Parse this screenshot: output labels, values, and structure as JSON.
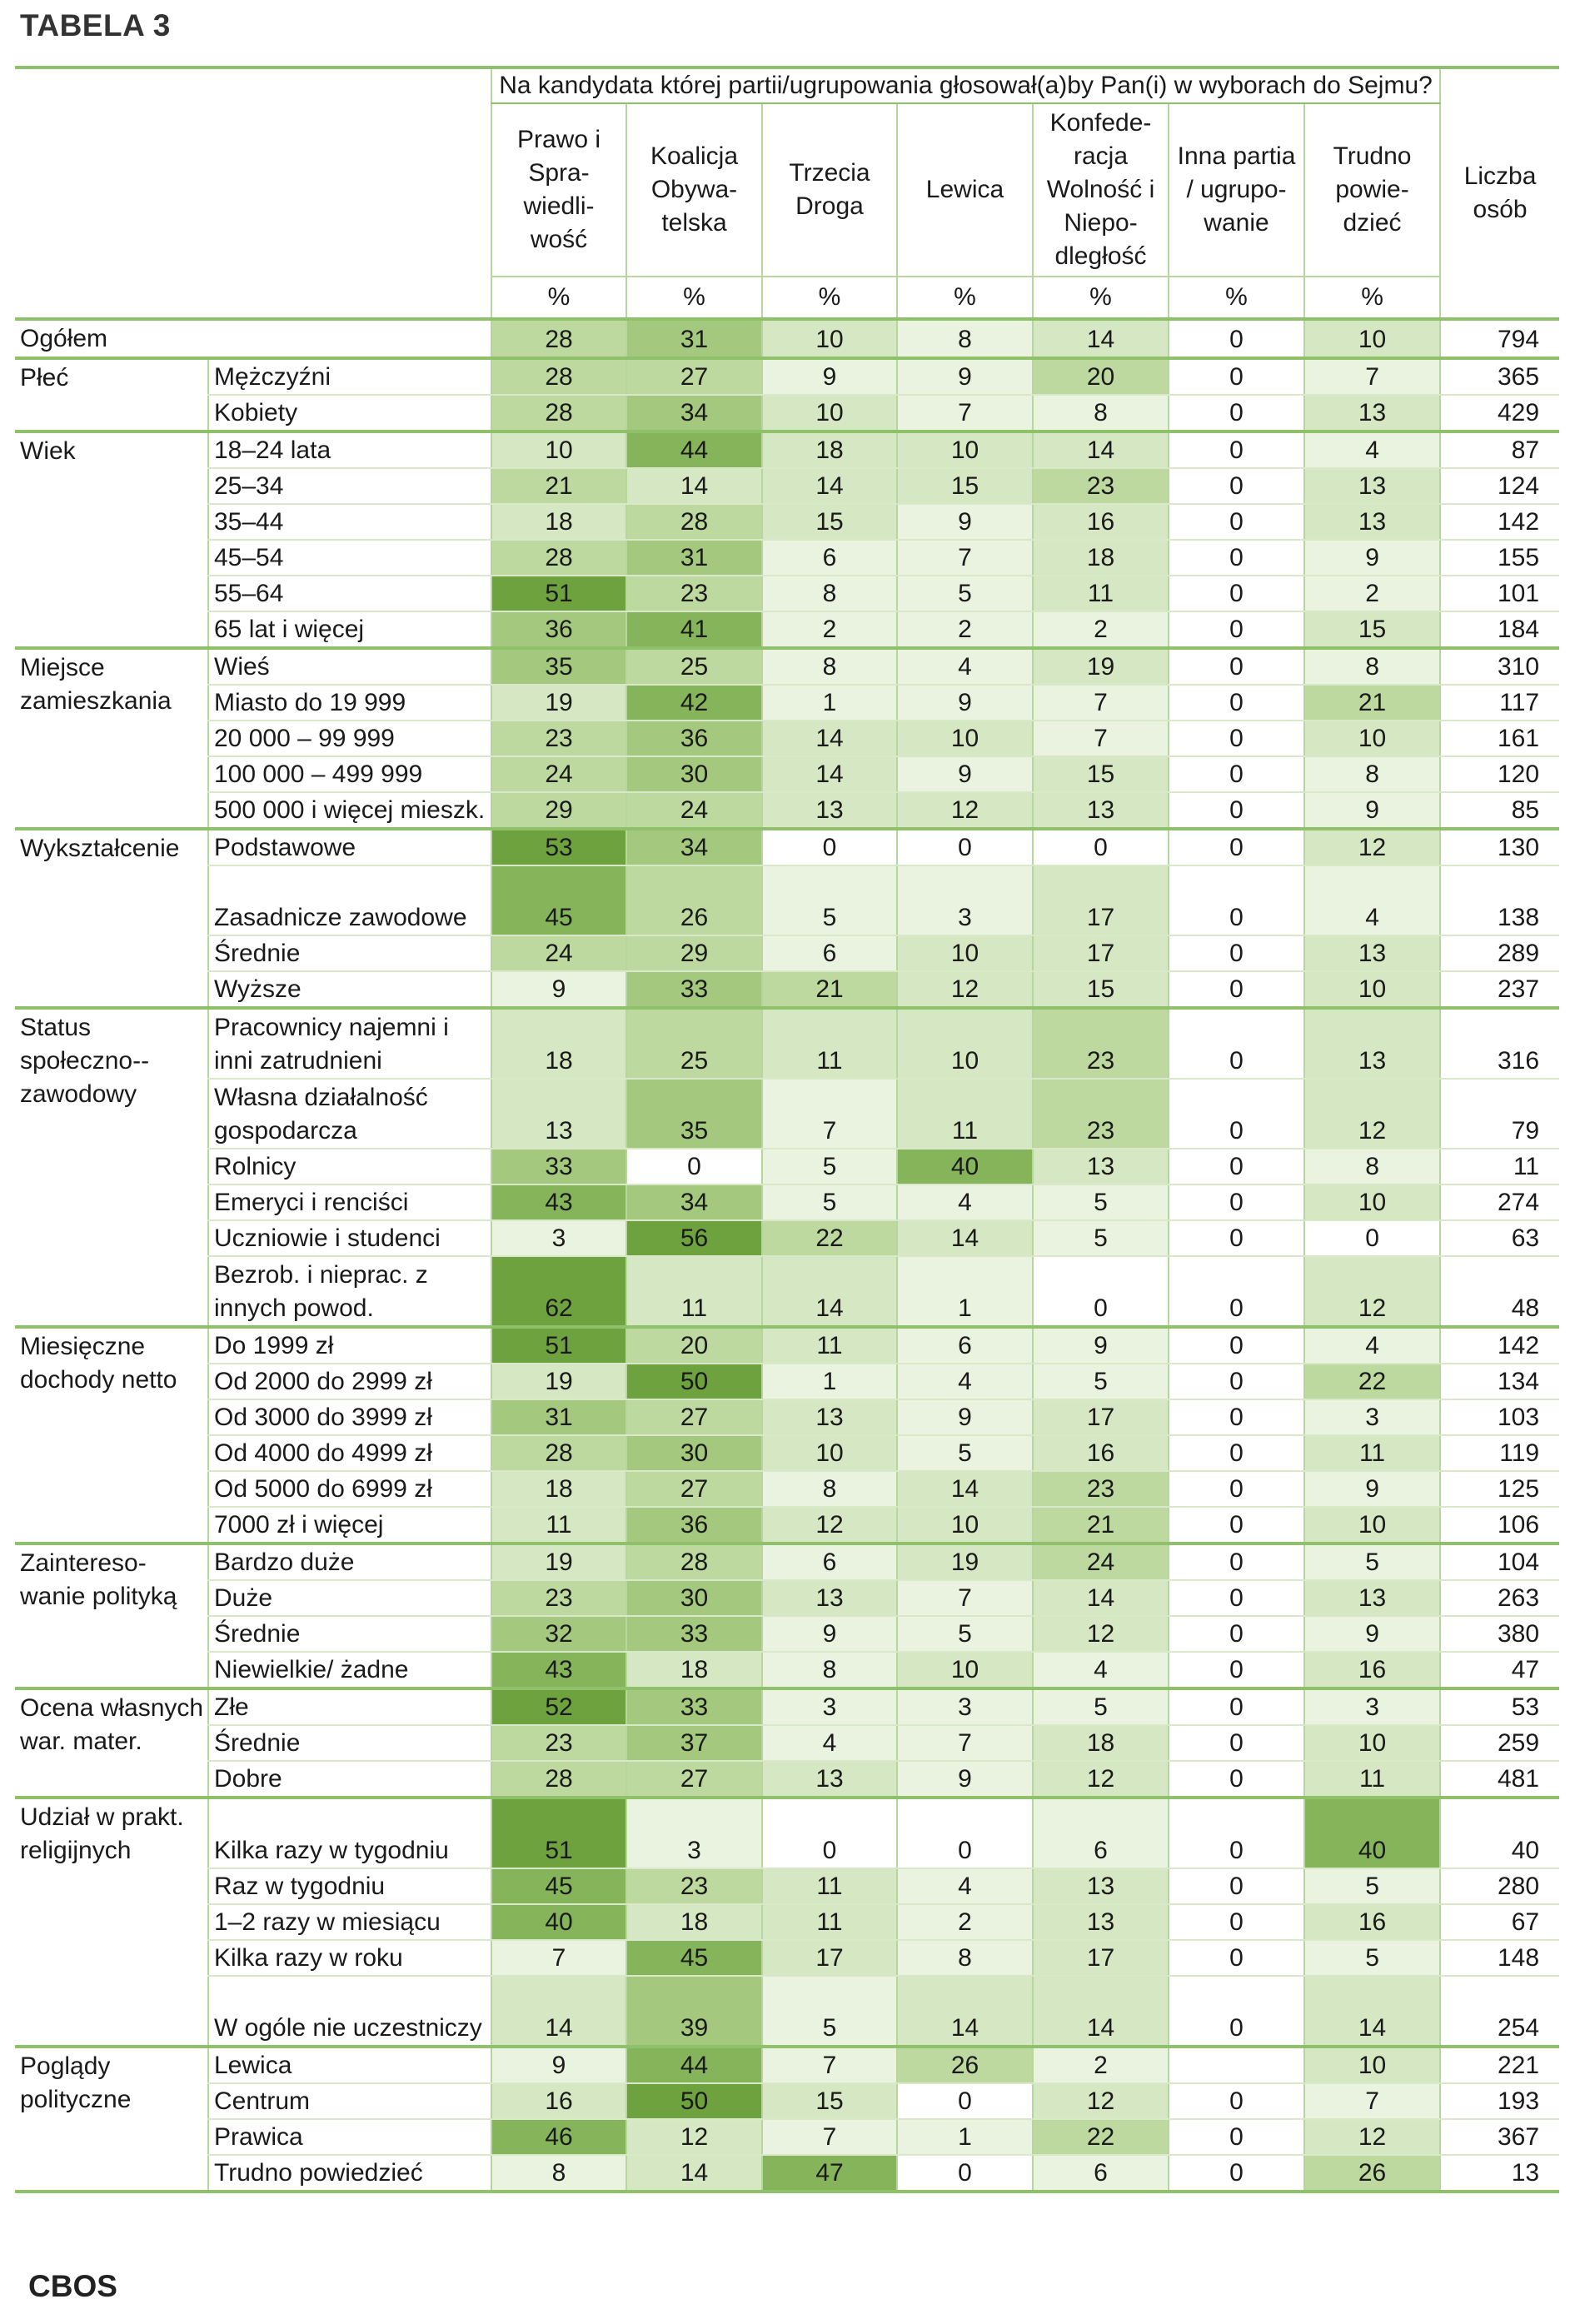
{
  "title": "TABELA 3",
  "footer": "CBOS",
  "table": {
    "question": "Na kandydata której partii/ugrupowania głosował(a)by Pan(i) w wyborach do Sejmu?",
    "columns": [
      "Prawo i Spra-wiedli-wość",
      "Koalicja Obywa-telska",
      "Trzecia Droga",
      "Lewica",
      "Konfede-racja Wolność i Niepo-dległość",
      "Inna partia / ugrupo-wanie",
      "Trudno powie-dzieć"
    ],
    "unit": "%",
    "count_header": "Liczba osób",
    "groups": [
      {
        "label": "Ogółem",
        "rows": [
          {
            "label": "",
            "values": [
              28,
              31,
              10,
              8,
              14,
              0,
              10
            ],
            "n": 794
          }
        ]
      },
      {
        "label": "Płeć",
        "rows": [
          {
            "label": "Mężczyźni",
            "values": [
              28,
              27,
              9,
              9,
              20,
              0,
              7
            ],
            "n": 365
          },
          {
            "label": "Kobiety",
            "values": [
              28,
              34,
              10,
              7,
              8,
              0,
              13
            ],
            "n": 429
          }
        ]
      },
      {
        "label": "Wiek",
        "rows": [
          {
            "label": "18–24 lata",
            "values": [
              10,
              44,
              18,
              10,
              14,
              0,
              4
            ],
            "n": 87
          },
          {
            "label": "25–34",
            "values": [
              21,
              14,
              14,
              15,
              23,
              0,
              13
            ],
            "n": 124
          },
          {
            "label": "35–44",
            "values": [
              18,
              28,
              15,
              9,
              16,
              0,
              13
            ],
            "n": 142
          },
          {
            "label": "45–54",
            "values": [
              28,
              31,
              6,
              7,
              18,
              0,
              9
            ],
            "n": 155
          },
          {
            "label": "55–64",
            "values": [
              51,
              23,
              8,
              5,
              11,
              0,
              2
            ],
            "n": 101
          },
          {
            "label": "65 lat i więcej",
            "values": [
              36,
              41,
              2,
              2,
              2,
              0,
              15
            ],
            "n": 184
          }
        ]
      },
      {
        "label": "Miejsce zamieszkania",
        "rows": [
          {
            "label": "Wieś",
            "values": [
              35,
              25,
              8,
              4,
              19,
              0,
              8
            ],
            "n": 310
          },
          {
            "label": "Miasto do 19 999",
            "values": [
              19,
              42,
              1,
              9,
              7,
              0,
              21
            ],
            "n": 117
          },
          {
            "label": "20 000 – 99 999",
            "values": [
              23,
              36,
              14,
              10,
              7,
              0,
              10
            ],
            "n": 161
          },
          {
            "label": "100 000 – 499 999",
            "values": [
              24,
              30,
              14,
              9,
              15,
              0,
              8
            ],
            "n": 120
          },
          {
            "label": "500 000 i więcej mieszk.",
            "values": [
              29,
              24,
              13,
              12,
              13,
              0,
              9
            ],
            "n": 85
          }
        ]
      },
      {
        "label": "Wykształcenie",
        "rows": [
          {
            "label": "Podstawowe",
            "values": [
              53,
              34,
              0,
              0,
              0,
              0,
              12
            ],
            "n": 130
          },
          {
            "label": "Zasadnicze zawodowe",
            "values": [
              45,
              26,
              5,
              3,
              17,
              0,
              4
            ],
            "n": 138
          },
          {
            "label": "Średnie",
            "values": [
              24,
              29,
              6,
              10,
              17,
              0,
              13
            ],
            "n": 289
          },
          {
            "label": "Wyższe",
            "values": [
              9,
              33,
              21,
              12,
              15,
              0,
              10
            ],
            "n": 237
          }
        ]
      },
      {
        "label": "Status społeczno--zawodowy",
        "rows": [
          {
            "label": "Pracownicy najemni i inni zatrudnieni",
            "values": [
              18,
              25,
              11,
              10,
              23,
              0,
              13
            ],
            "n": 316
          },
          {
            "label": "Własna działalność gospodarcza",
            "values": [
              13,
              35,
              7,
              11,
              23,
              0,
              12
            ],
            "n": 79
          },
          {
            "label": "Rolnicy",
            "values": [
              33,
              0,
              5,
              40,
              13,
              0,
              8
            ],
            "n": 11
          },
          {
            "label": "Emeryci i renciści",
            "values": [
              43,
              34,
              5,
              4,
              5,
              0,
              10
            ],
            "n": 274
          },
          {
            "label": "Uczniowie i studenci",
            "values": [
              3,
              56,
              22,
              14,
              5,
              0,
              0
            ],
            "n": 63
          },
          {
            "label": "Bezrob. i nieprac. z innych powod.",
            "values": [
              62,
              11,
              14,
              1,
              0,
              0,
              12
            ],
            "n": 48
          }
        ]
      },
      {
        "label": "Miesięczne dochody netto",
        "rows": [
          {
            "label": "Do 1999 zł",
            "values": [
              51,
              20,
              11,
              6,
              9,
              0,
              4
            ],
            "n": 142
          },
          {
            "label": "Od 2000 do 2999 zł",
            "values": [
              19,
              50,
              1,
              4,
              5,
              0,
              22
            ],
            "n": 134
          },
          {
            "label": "Od 3000 do 3999 zł",
            "values": [
              31,
              27,
              13,
              9,
              17,
              0,
              3
            ],
            "n": 103
          },
          {
            "label": "Od 4000 do 4999 zł",
            "values": [
              28,
              30,
              10,
              5,
              16,
              0,
              11
            ],
            "n": 119
          },
          {
            "label": "Od 5000 do 6999 zł",
            "values": [
              18,
              27,
              8,
              14,
              23,
              0,
              9
            ],
            "n": 125
          },
          {
            "label": "7000 zł i więcej",
            "values": [
              11,
              36,
              12,
              10,
              21,
              0,
              10
            ],
            "n": 106
          }
        ]
      },
      {
        "label": "Zaintereso-wanie polityką",
        "rows": [
          {
            "label": "Bardzo duże",
            "values": [
              19,
              28,
              6,
              19,
              24,
              0,
              5
            ],
            "n": 104
          },
          {
            "label": "Duże",
            "values": [
              23,
              30,
              13,
              7,
              14,
              0,
              13
            ],
            "n": 263
          },
          {
            "label": "Średnie",
            "values": [
              32,
              33,
              9,
              5,
              12,
              0,
              9
            ],
            "n": 380
          },
          {
            "label": "Niewielkie/ żadne",
            "values": [
              43,
              18,
              8,
              10,
              4,
              0,
              16
            ],
            "n": 47
          }
        ]
      },
      {
        "label": "Ocena własnych war. mater.",
        "rows": [
          {
            "label": "Złe",
            "values": [
              52,
              33,
              3,
              3,
              5,
              0,
              3
            ],
            "n": 53
          },
          {
            "label": "Średnie",
            "values": [
              23,
              37,
              4,
              7,
              18,
              0,
              10
            ],
            "n": 259
          },
          {
            "label": "Dobre",
            "values": [
              28,
              27,
              13,
              9,
              12,
              0,
              11
            ],
            "n": 481
          }
        ]
      },
      {
        "label": "Udział w prakt. religijnych",
        "rows": [
          {
            "label": "Kilka razy w tygodniu",
            "values": [
              51,
              3,
              0,
              0,
              6,
              0,
              40
            ],
            "n": 40
          },
          {
            "label": "Raz w tygodniu",
            "values": [
              45,
              23,
              11,
              4,
              13,
              0,
              5
            ],
            "n": 280
          },
          {
            "label": "1–2 razy w miesiącu",
            "values": [
              40,
              18,
              11,
              2,
              13,
              0,
              16
            ],
            "n": 67
          },
          {
            "label": "Kilka razy w roku",
            "values": [
              7,
              45,
              17,
              8,
              17,
              0,
              5
            ],
            "n": 148
          },
          {
            "label": "W ogóle nie uczestniczy",
            "values": [
              14,
              39,
              5,
              14,
              14,
              0,
              14
            ],
            "n": 254
          }
        ]
      },
      {
        "label": "Poglądy polityczne",
        "rows": [
          {
            "label": "Lewica",
            "values": [
              9,
              44,
              7,
              26,
              2,
              null,
              10
            ],
            "n": 221
          },
          {
            "label": "Centrum",
            "values": [
              16,
              50,
              15,
              0,
              12,
              0,
              7
            ],
            "n": 193
          },
          {
            "label": "Prawica",
            "values": [
              46,
              12,
              7,
              1,
              22,
              0,
              12
            ],
            "n": 367
          },
          {
            "label": "Trudno powiedzieć",
            "values": [
              8,
              14,
              47,
              0,
              6,
              0,
              26
            ],
            "n": 13
          }
        ]
      }
    ]
  },
  "shading_colors": {
    "level0": "#ffffff",
    "level1": "#eaf3df",
    "level2": "#d6e8c3",
    "level3": "#bdd9a0",
    "level4": "#a4c97e",
    "level5": "#86b45a",
    "level6": "#6ea23e"
  }
}
